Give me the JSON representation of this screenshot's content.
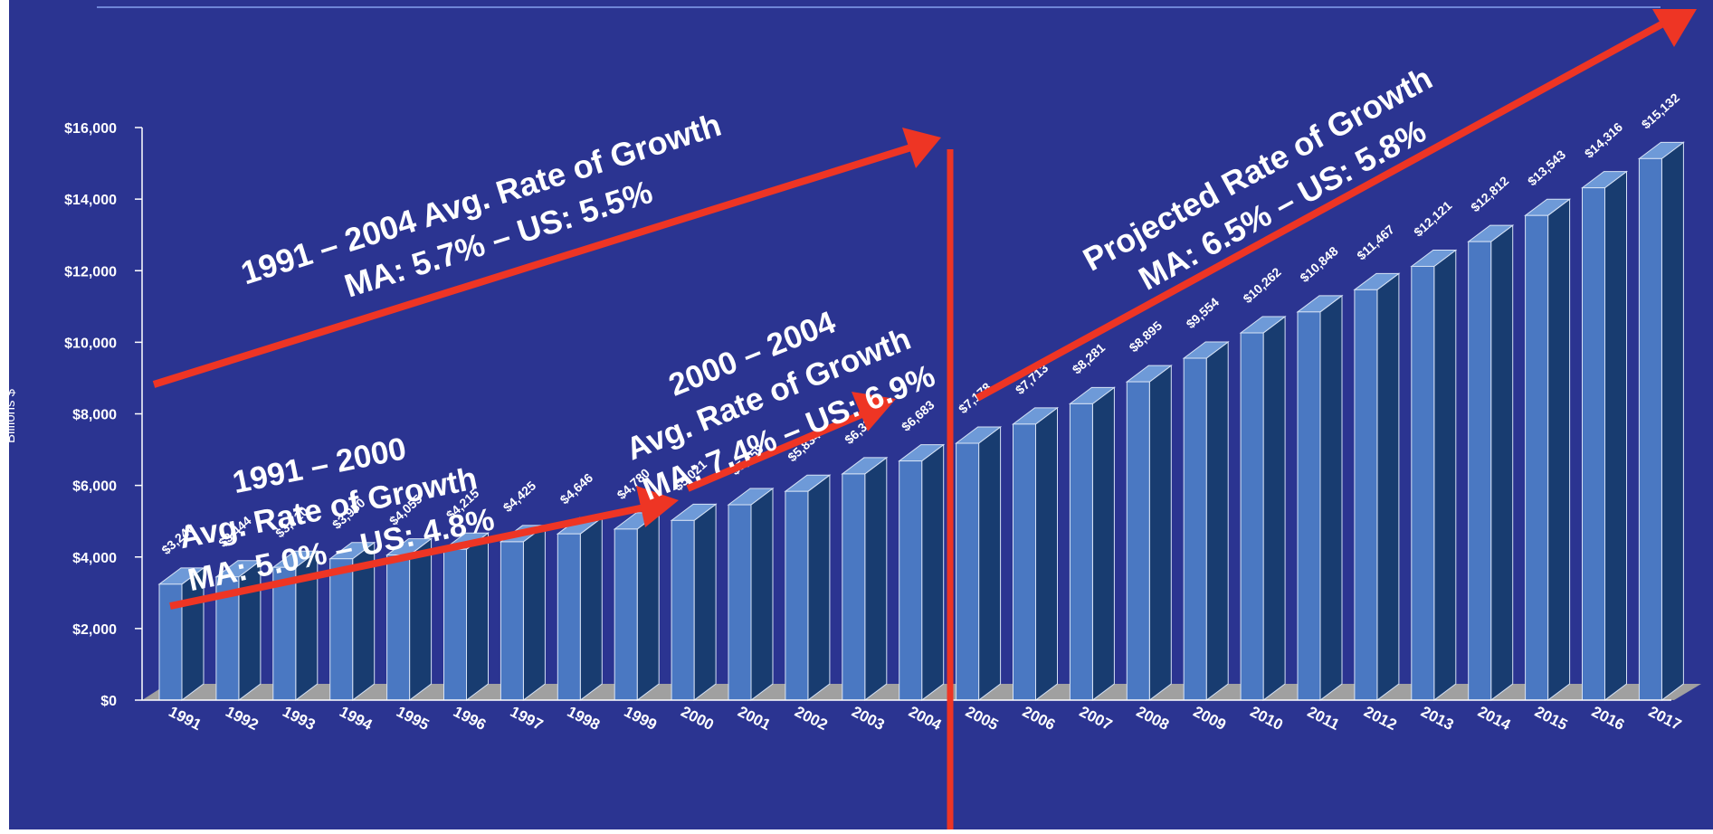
{
  "chart_data": {
    "type": "bar",
    "title": "",
    "xlabel": "",
    "ylabel": "Billions $",
    "ylim": [
      0,
      16000
    ],
    "yticks": [
      0,
      2000,
      4000,
      6000,
      8000,
      10000,
      12000,
      14000,
      16000
    ],
    "ytick_labels": [
      "$0",
      "$2,000",
      "$4,000",
      "$6,000",
      "$8,000",
      "$10,000",
      "$12,000",
      "$14,000",
      "$16,000"
    ],
    "grid": false,
    "bar_style": "3d",
    "categories": [
      "1991",
      "1992",
      "1993",
      "1994",
      "1995",
      "1996",
      "1997",
      "1998",
      "1999",
      "2000",
      "2001",
      "2002",
      "2003",
      "2004",
      "2005",
      "2006",
      "2007",
      "2008",
      "2009",
      "2010",
      "2011",
      "2012",
      "2013",
      "2014",
      "2015",
      "2016",
      "2017"
    ],
    "values": [
      3240,
      3444,
      3710,
      3950,
      4055,
      4215,
      4425,
      4646,
      4780,
      5021,
      5459,
      5834,
      6321,
      6683,
      7178,
      7713,
      8281,
      8895,
      9554,
      10262,
      10848,
      11467,
      12121,
      12812,
      13543,
      14316,
      15132
    ],
    "value_labels": [
      "$3,240",
      "$3,444",
      "$3,710",
      "$3,950",
      "$4,055",
      "$4,215",
      "$4,425",
      "$4,646",
      "$4,780",
      "$5,021",
      "$5,459",
      "$5,834",
      "$6,321",
      "$6,683",
      "$7,178",
      "$7,713",
      "$8,281",
      "$8,895",
      "$9,554",
      "$10,262",
      "$10,848",
      "$11,467",
      "$12,121",
      "$12,812",
      "$13,543",
      "$14,316",
      "$15,132"
    ],
    "annotations": [
      {
        "lines": [
          "1991 – 2004 Avg. Rate of Growth",
          "MA: 5.7% – US: 5.5%"
        ]
      },
      {
        "lines": [
          "1991 – 2000",
          "Avg. Rate of Growth",
          "MA: 5.0% – US: 4.8%"
        ]
      },
      {
        "lines": [
          "2000 – 2004",
          "Avg. Rate of Growth",
          "MA: 7.4% – US: 6.9%"
        ]
      },
      {
        "lines": [
          "Projected Rate of Growth",
          "MA: 6.5% – US: 5.8%"
        ]
      }
    ],
    "colors": {
      "background": "#2B3491",
      "bar_front": "#4A78C2",
      "bar_side": "#183C70",
      "bar_top": "#6E9AD8",
      "bar_edge": "#D6E2F5",
      "floor": "#A0A0A0",
      "arrow": "#EE3524",
      "text": "#FFFFFF",
      "top_rule": "#6F86D8"
    }
  }
}
